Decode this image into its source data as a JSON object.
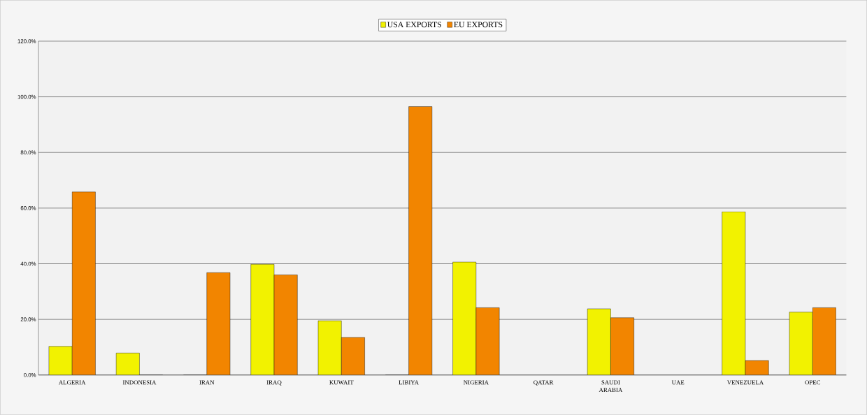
{
  "chart_data": {
    "type": "bar",
    "categories": [
      "ALGERIA",
      "INDONESIA",
      "IRAN",
      "IRAQ",
      "KUWAIT",
      "LIBIYA",
      "NIGERIA",
      "QATAR",
      "SAUDI ARABIA",
      "UAE",
      "VENEZUELA",
      "OPEC"
    ],
    "series": [
      {
        "name": "USA EXPORTS",
        "color": "#f2f200",
        "values": [
          10.3,
          7.9,
          0,
          39.8,
          19.5,
          0,
          40.6,
          null,
          23.8,
          null,
          58.7,
          22.6
        ]
      },
      {
        "name": "EU EXPORTS",
        "color": "#f28500",
        "values": [
          65.8,
          0,
          36.8,
          36.0,
          13.5,
          96.5,
          24.2,
          null,
          20.6,
          null,
          5.2,
          24.2
        ]
      }
    ],
    "ylim": [
      0,
      120
    ],
    "yticks": [
      {
        "value": 0,
        "label": "0.0%"
      },
      {
        "value": 20,
        "label": "20.0%"
      },
      {
        "value": 40,
        "label": "40.0%"
      },
      {
        "value": 60,
        "label": "60.0%"
      },
      {
        "value": 80,
        "label": "80.0%"
      },
      {
        "value": 100,
        "label": "100.0%"
      },
      {
        "value": 120,
        "label": "120.0%"
      }
    ],
    "grid": "y",
    "legend": "top"
  }
}
